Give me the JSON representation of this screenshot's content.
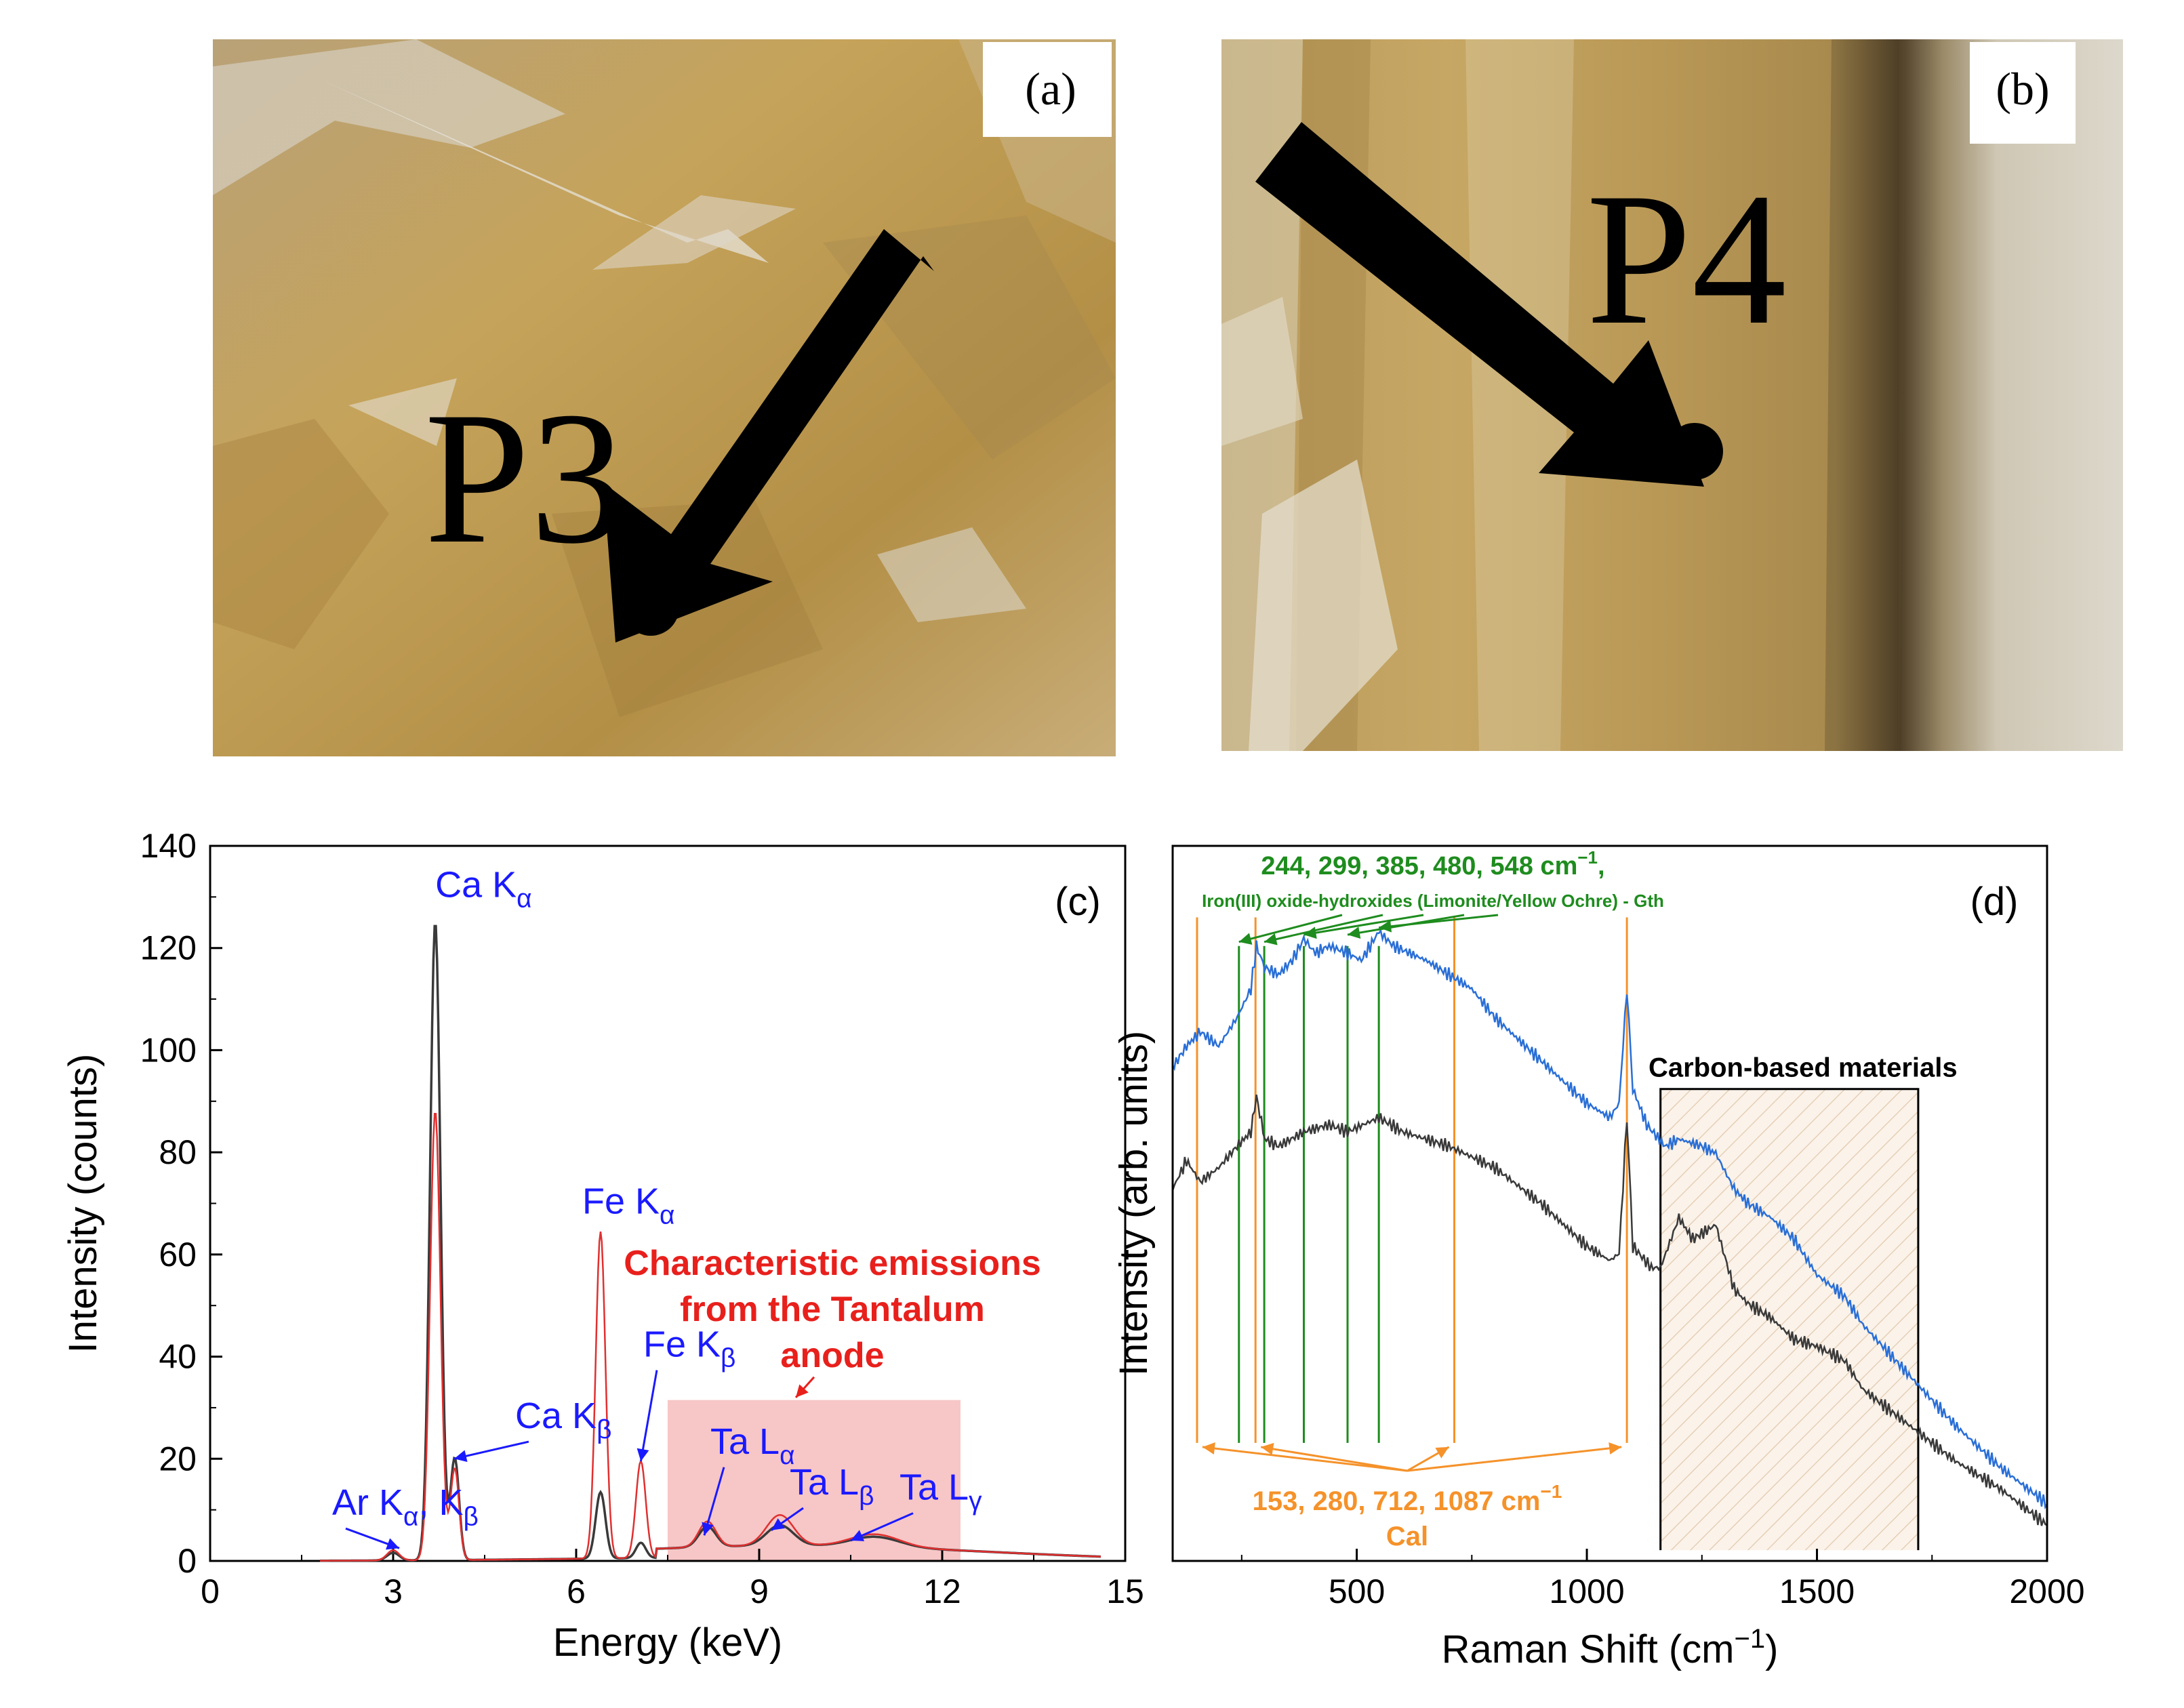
{
  "panels": [
    {
      "label": "(a)",
      "point_label": "P3"
    },
    {
      "label": "(b)",
      "point_label": "P4"
    }
  ],
  "chart_data": [
    {
      "panel_label": "(c)",
      "type": "line",
      "xlabel": "Energy (keV)",
      "ylabel": "Intensity (counts)",
      "xlim": [
        0,
        15
      ],
      "ylim": [
        0,
        140
      ],
      "xticks": [
        0,
        3,
        6,
        9,
        12,
        15
      ],
      "yticks": [
        0,
        20,
        40,
        60,
        80,
        100,
        120,
        140
      ],
      "grid": false,
      "series": [
        {
          "name": "P3 spectrum",
          "color": "#3a3a3a",
          "peaks": [
            [
              3.0,
              1.5,
              0.1
            ],
            [
              3.69,
              125,
              0.085
            ],
            [
              4.01,
              20,
              0.07
            ],
            [
              6.4,
              13,
              0.08
            ],
            [
              7.06,
              3,
              0.08
            ],
            [
              8.15,
              4,
              0.14
            ],
            [
              9.34,
              4,
              0.22
            ],
            [
              10.9,
              2,
              0.4
            ]
          ],
          "background": 3
        },
        {
          "name": "P4 spectrum",
          "color": "#e03030",
          "peaks": [
            [
              3.0,
              2,
              0.1
            ],
            [
              3.69,
              88,
              0.085
            ],
            [
              4.01,
              18,
              0.07
            ],
            [
              6.4,
              64,
              0.08
            ],
            [
              7.06,
              19,
              0.08
            ],
            [
              8.15,
              5,
              0.14
            ],
            [
              9.34,
              6,
              0.22
            ],
            [
              10.9,
              2.5,
              0.4
            ]
          ],
          "background": 3
        }
      ],
      "shaded_region": {
        "x": [
          7.5,
          12.3
        ],
        "y": [
          0,
          31.5
        ],
        "color": "#f7c6c6"
      },
      "annotations": [
        {
          "text": "Ca K",
          "sub": "α",
          "x": 3.69,
          "y": 130,
          "target": null,
          "color": "#1a1aff"
        },
        {
          "text": "Ca K",
          "sub": "β",
          "x": 5.0,
          "y": 26,
          "target": [
            4.0,
            20
          ],
          "color": "#1a1aff"
        },
        {
          "text": "Fe K",
          "sub": "α",
          "x": 6.1,
          "y": 68,
          "target": null,
          "color": "#1a1aff"
        },
        {
          "text": "Fe K",
          "sub": "β",
          "x": 7.1,
          "y": 40,
          "target": [
            7.06,
            19.5
          ],
          "color": "#1a1aff"
        },
        {
          "text": "Ar K",
          "sub": "α",
          "text2": ", K",
          "sub2": "β",
          "x": 2.0,
          "y": 9,
          "target": [
            3.1,
            2.5
          ],
          "color": "#1a1aff"
        },
        {
          "text": "Ta L",
          "sub": "α",
          "x": 8.2,
          "y": 21,
          "target": [
            8.1,
            5
          ],
          "color": "#1a1aff"
        },
        {
          "text": "Ta L",
          "sub": "β",
          "x": 9.5,
          "y": 13,
          "target": [
            9.2,
            6
          ],
          "color": "#1a1aff"
        },
        {
          "text": "Ta L",
          "sub": "γ",
          "x": 11.3,
          "y": 12,
          "target": [
            10.5,
            4
          ],
          "color": "#1a1aff"
        }
      ],
      "red_note": {
        "lines": [
          "Characteristic emissions",
          "from the Tantalum",
          "anode"
        ],
        "x": 10.2,
        "y": 56,
        "target": [
          9.6,
          32
        ],
        "color": "#e8201c"
      }
    },
    {
      "panel_label": "(d)",
      "type": "line",
      "xlabel": "Raman Shift (cm",
      "xlabel_sup": "−1",
      "xlabel_end": ")",
      "ylabel": "Intensity (arb. units)",
      "xlim": [
        100,
        2000
      ],
      "xticks": [
        500,
        1000,
        1500,
        2000
      ],
      "ylim": [
        0,
        1
      ],
      "grid": false,
      "series": [
        {
          "name": "upper spectrum",
          "color": "#2a6fd6",
          "points": [
            [
              100,
              0.69
            ],
            [
              130,
              0.72
            ],
            [
              160,
              0.74
            ],
            [
              200,
              0.72
            ],
            [
              240,
              0.76
            ],
            [
              270,
              0.8
            ],
            [
              282,
              0.86
            ],
            [
              300,
              0.83
            ],
            [
              330,
              0.82
            ],
            [
              360,
              0.84
            ],
            [
              385,
              0.87
            ],
            [
              410,
              0.85
            ],
            [
              440,
              0.86
            ],
            [
              480,
              0.85
            ],
            [
              510,
              0.84
            ],
            [
              548,
              0.88
            ],
            [
              580,
              0.86
            ],
            [
              650,
              0.84
            ],
            [
              700,
              0.82
            ],
            [
              750,
              0.8
            ],
            [
              800,
              0.76
            ],
            [
              850,
              0.73
            ],
            [
              900,
              0.7
            ],
            [
              950,
              0.67
            ],
            [
              1000,
              0.64
            ],
            [
              1050,
              0.62
            ],
            [
              1070,
              0.64
            ],
            [
              1087,
              0.8
            ],
            [
              1100,
              0.66
            ],
            [
              1130,
              0.61
            ],
            [
              1170,
              0.58
            ],
            [
              1200,
              0.59
            ],
            [
              1250,
              0.58
            ],
            [
              1280,
              0.57
            ],
            [
              1320,
              0.52
            ],
            [
              1350,
              0.5
            ],
            [
              1400,
              0.48
            ],
            [
              1450,
              0.45
            ],
            [
              1500,
              0.4
            ],
            [
              1560,
              0.37
            ],
            [
              1600,
              0.33
            ],
            [
              1700,
              0.26
            ],
            [
              1800,
              0.19
            ],
            [
              1900,
              0.13
            ],
            [
              2000,
              0.08
            ]
          ]
        },
        {
          "name": "lower spectrum",
          "color": "#3a3a3a",
          "points": [
            [
              100,
              0.52
            ],
            [
              130,
              0.56
            ],
            [
              160,
              0.53
            ],
            [
              200,
              0.55
            ],
            [
              240,
              0.58
            ],
            [
              270,
              0.6
            ],
            [
              282,
              0.65
            ],
            [
              300,
              0.59
            ],
            [
              330,
              0.58
            ],
            [
              385,
              0.6
            ],
            [
              440,
              0.61
            ],
            [
              480,
              0.6
            ],
            [
              548,
              0.62
            ],
            [
              600,
              0.6
            ],
            [
              700,
              0.58
            ],
            [
              800,
              0.55
            ],
            [
              900,
              0.5
            ],
            [
              950,
              0.47
            ],
            [
              1000,
              0.44
            ],
            [
              1050,
              0.42
            ],
            [
              1070,
              0.43
            ],
            [
              1087,
              0.62
            ],
            [
              1100,
              0.44
            ],
            [
              1140,
              0.41
            ],
            [
              1160,
              0.41
            ],
            [
              1200,
              0.48
            ],
            [
              1230,
              0.45
            ],
            [
              1280,
              0.47
            ],
            [
              1320,
              0.38
            ],
            [
              1350,
              0.36
            ],
            [
              1400,
              0.34
            ],
            [
              1450,
              0.31
            ],
            [
              1500,
              0.3
            ],
            [
              1560,
              0.28
            ],
            [
              1600,
              0.24
            ],
            [
              1700,
              0.19
            ],
            [
              1800,
              0.14
            ],
            [
              1900,
              0.1
            ],
            [
              2000,
              0.05
            ]
          ]
        }
      ],
      "green_lines": [
        244,
        299,
        385,
        480,
        548
      ],
      "orange_lines": [
        153,
        280,
        712,
        1087
      ],
      "green_label": {
        "line1": "244, 299, 385, 480, 548 cm",
        "sup": "−1",
        "line1_end": ",",
        "line2": "Iron(III) oxide-hydroxides (Limonite/Yellow Ochre) - Gth",
        "color": "#1e8c1e"
      },
      "orange_label": {
        "line1": "153, 280, 712, 1087 cm",
        "sup": "−1",
        "line2": "Cal",
        "color": "#f5922a"
      },
      "carbon_region": {
        "x": [
          1160,
          1720
        ],
        "label": "Carbon-based materials"
      }
    }
  ]
}
